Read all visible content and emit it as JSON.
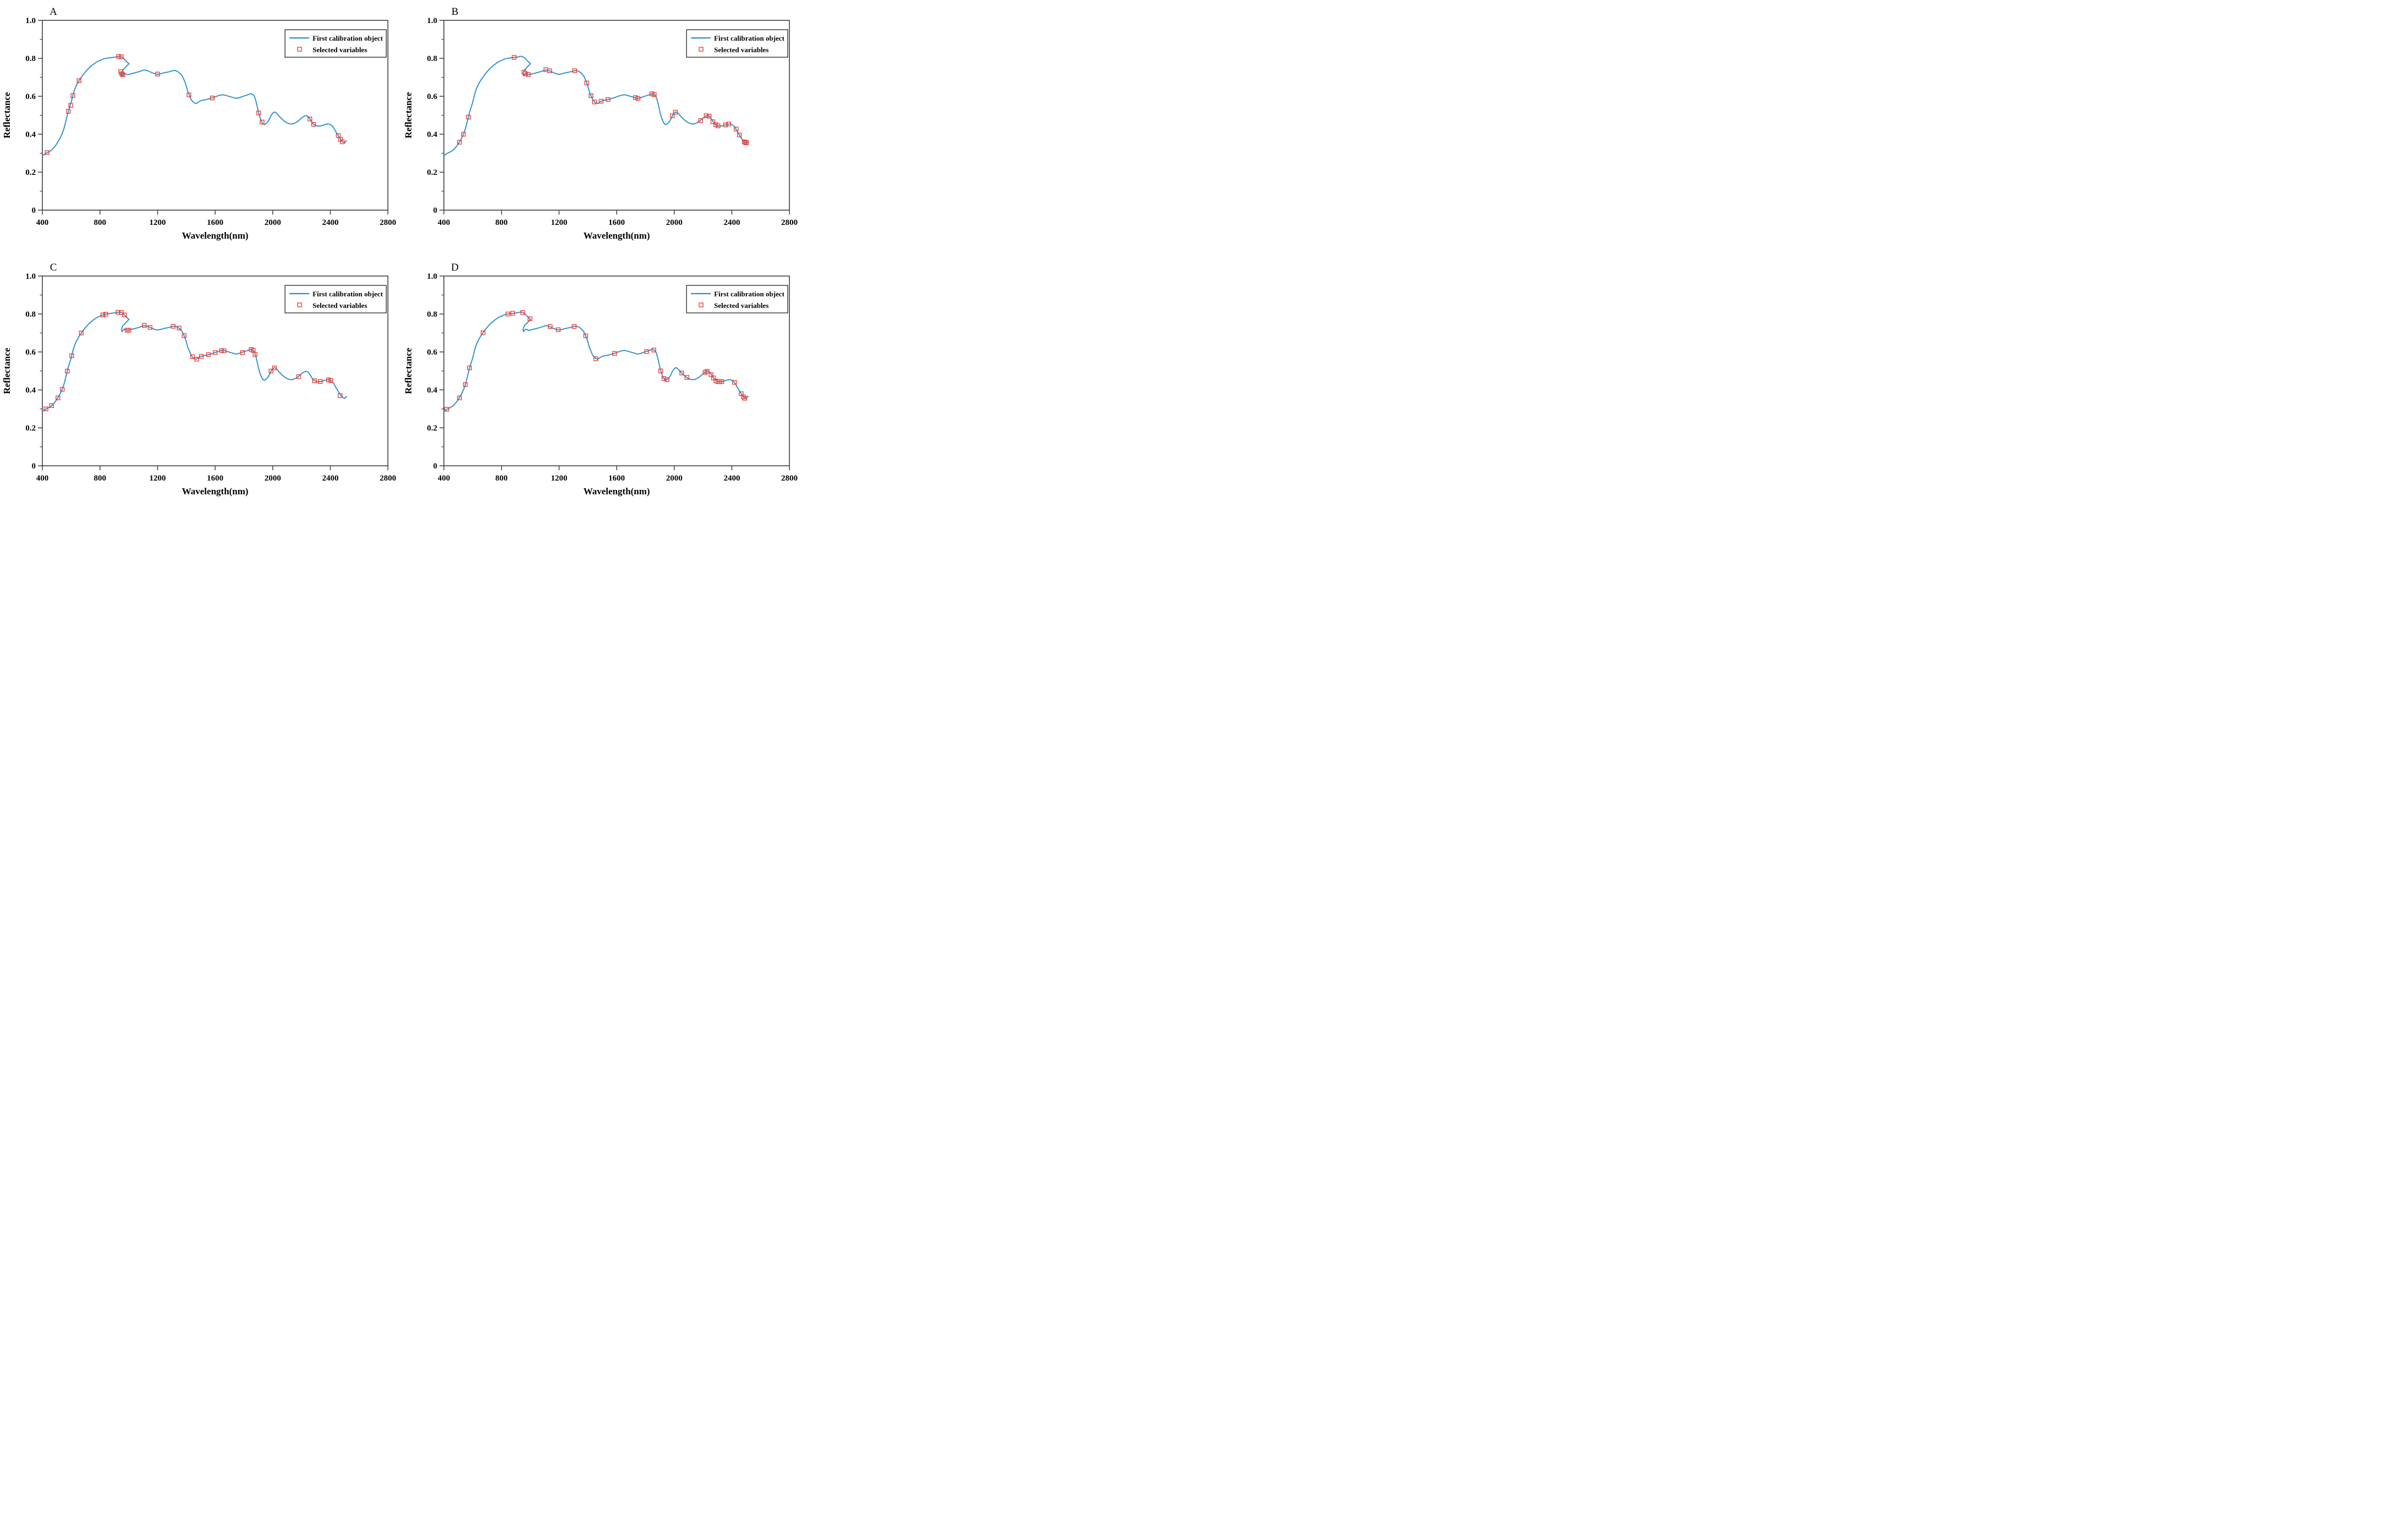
{
  "figure": {
    "description": "Four-panel figure (A-D) of reflectance spectra of the first calibration object with selected variables marked",
    "background": "#ffffff"
  },
  "styles": {
    "line_color": "#2b8fce",
    "marker_color": "#ef4136",
    "axis_color": "#3f3f3f",
    "text_color": "#000000"
  },
  "legend": {
    "position": "top-right",
    "entries": [
      {
        "label": "First calibration object",
        "symbol": "line"
      },
      {
        "label": "Selected variables",
        "symbol": "open-square"
      }
    ]
  },
  "axes": {
    "xlabel": "Wavelength(nm)",
    "ylabel": "Reflectance",
    "xlim": [
      400,
      2800
    ],
    "ylim": [
      0,
      1.0
    ],
    "xticks": [
      400,
      800,
      1200,
      1600,
      2000,
      2400,
      2800
    ],
    "yticks": [
      0,
      0.2,
      0.4,
      0.6,
      0.8,
      1.0
    ],
    "ytick_labels": [
      "0",
      "0.2",
      "0.4",
      "0.6",
      "0.8",
      "1.0"
    ],
    "y_minor_step": 0.1,
    "grid": false
  },
  "spectrum": {
    "name": "First calibration object",
    "points": [
      [
        400,
        0.287
      ],
      [
        412,
        0.293
      ],
      [
        424,
        0.299
      ],
      [
        433,
        0.303
      ],
      [
        445,
        0.307
      ],
      [
        458,
        0.313
      ],
      [
        470,
        0.321
      ],
      [
        482,
        0.331
      ],
      [
        494,
        0.343
      ],
      [
        506,
        0.357
      ],
      [
        518,
        0.372
      ],
      [
        530,
        0.39
      ],
      [
        540,
        0.408
      ],
      [
        550,
        0.43
      ],
      [
        560,
        0.459
      ],
      [
        570,
        0.49
      ],
      [
        580,
        0.52
      ],
      [
        590,
        0.545
      ],
      [
        600,
        0.567
      ],
      [
        610,
        0.6
      ],
      [
        620,
        0.627
      ],
      [
        632,
        0.65
      ],
      [
        645,
        0.67
      ],
      [
        658,
        0.686
      ],
      [
        670,
        0.7
      ],
      [
        682,
        0.712
      ],
      [
        695,
        0.725
      ],
      [
        710,
        0.738
      ],
      [
        725,
        0.75
      ],
      [
        740,
        0.76
      ],
      [
        755,
        0.769
      ],
      [
        770,
        0.777
      ],
      [
        785,
        0.784
      ],
      [
        800,
        0.789
      ],
      [
        815,
        0.794
      ],
      [
        830,
        0.798
      ],
      [
        845,
        0.8
      ],
      [
        860,
        0.802
      ],
      [
        875,
        0.803
      ],
      [
        890,
        0.805
      ],
      [
        905,
        0.806
      ],
      [
        915,
        0.807
      ],
      [
        925,
        0.809
      ],
      [
        935,
        0.811
      ],
      [
        945,
        0.809
      ],
      [
        955,
        0.805
      ],
      [
        965,
        0.799
      ],
      [
        975,
        0.791
      ],
      [
        985,
        0.783
      ],
      [
        995,
        0.776
      ],
      [
        1002,
        0.772
      ],
      [
        958,
        0.737
      ],
      [
        950,
        0.72
      ],
      [
        953,
        0.707
      ],
      [
        960,
        0.714
      ],
      [
        968,
        0.72
      ],
      [
        976,
        0.719
      ],
      [
        985,
        0.715
      ],
      [
        995,
        0.714
      ],
      [
        1008,
        0.717
      ],
      [
        1022,
        0.72
      ],
      [
        1036,
        0.722
      ],
      [
        1050,
        0.725
      ],
      [
        1064,
        0.728
      ],
      [
        1078,
        0.731
      ],
      [
        1092,
        0.735
      ],
      [
        1106,
        0.739
      ],
      [
        1120,
        0.737
      ],
      [
        1134,
        0.734
      ],
      [
        1148,
        0.729
      ],
      [
        1162,
        0.724
      ],
      [
        1176,
        0.72
      ],
      [
        1190,
        0.717
      ],
      [
        1204,
        0.716
      ],
      [
        1218,
        0.718
      ],
      [
        1232,
        0.721
      ],
      [
        1246,
        0.724
      ],
      [
        1260,
        0.726
      ],
      [
        1274,
        0.728
      ],
      [
        1288,
        0.731
      ],
      [
        1302,
        0.734
      ],
      [
        1316,
        0.736
      ],
      [
        1330,
        0.734
      ],
      [
        1344,
        0.728
      ],
      [
        1358,
        0.719
      ],
      [
        1372,
        0.706
      ],
      [
        1386,
        0.683
      ],
      [
        1398,
        0.658
      ],
      [
        1410,
        0.625
      ],
      [
        1422,
        0.603
      ],
      [
        1434,
        0.582
      ],
      [
        1446,
        0.57
      ],
      [
        1458,
        0.564
      ],
      [
        1470,
        0.562
      ],
      [
        1484,
        0.57
      ],
      [
        1498,
        0.576
      ],
      [
        1512,
        0.579
      ],
      [
        1526,
        0.581
      ],
      [
        1540,
        0.583
      ],
      [
        1554,
        0.586
      ],
      [
        1568,
        0.589
      ],
      [
        1582,
        0.592
      ],
      [
        1600,
        0.597
      ],
      [
        1618,
        0.602
      ],
      [
        1636,
        0.606
      ],
      [
        1654,
        0.608
      ],
      [
        1672,
        0.605
      ],
      [
        1690,
        0.601
      ],
      [
        1708,
        0.597
      ],
      [
        1726,
        0.593
      ],
      [
        1744,
        0.589
      ],
      [
        1762,
        0.591
      ],
      [
        1780,
        0.596
      ],
      [
        1798,
        0.601
      ],
      [
        1816,
        0.605
      ],
      [
        1834,
        0.61
      ],
      [
        1848,
        0.614
      ],
      [
        1862,
        0.609
      ],
      [
        1872,
        0.601
      ],
      [
        1882,
        0.578
      ],
      [
        1892,
        0.548
      ],
      [
        1902,
        0.512
      ],
      [
        1912,
        0.487
      ],
      [
        1922,
        0.467
      ],
      [
        1932,
        0.455
      ],
      [
        1942,
        0.451
      ],
      [
        1952,
        0.455
      ],
      [
        1964,
        0.464
      ],
      [
        1976,
        0.479
      ],
      [
        1988,
        0.499
      ],
      [
        2000,
        0.511
      ],
      [
        2010,
        0.517
      ],
      [
        2020,
        0.515
      ],
      [
        2032,
        0.506
      ],
      [
        2044,
        0.495
      ],
      [
        2056,
        0.486
      ],
      [
        2068,
        0.477
      ],
      [
        2080,
        0.469
      ],
      [
        2092,
        0.463
      ],
      [
        2104,
        0.458
      ],
      [
        2116,
        0.455
      ],
      [
        2128,
        0.454
      ],
      [
        2140,
        0.455
      ],
      [
        2152,
        0.458
      ],
      [
        2164,
        0.463
      ],
      [
        2176,
        0.469
      ],
      [
        2188,
        0.477
      ],
      [
        2200,
        0.485
      ],
      [
        2212,
        0.492
      ],
      [
        2224,
        0.497
      ],
      [
        2236,
        0.498
      ],
      [
        2248,
        0.492
      ],
      [
        2260,
        0.478
      ],
      [
        2272,
        0.463
      ],
      [
        2284,
        0.452
      ],
      [
        2296,
        0.446
      ],
      [
        2308,
        0.443
      ],
      [
        2320,
        0.443
      ],
      [
        2332,
        0.444
      ],
      [
        2344,
        0.446
      ],
      [
        2356,
        0.449
      ],
      [
        2368,
        0.452
      ],
      [
        2380,
        0.454
      ],
      [
        2392,
        0.453
      ],
      [
        2404,
        0.449
      ],
      [
        2416,
        0.441
      ],
      [
        2428,
        0.428
      ],
      [
        2440,
        0.411
      ],
      [
        2452,
        0.396
      ],
      [
        2464,
        0.381
      ],
      [
        2476,
        0.368
      ],
      [
        2488,
        0.359
      ],
      [
        2500,
        0.355
      ],
      [
        2512,
        0.366
      ]
    ]
  },
  "chart_data": [
    {
      "type": "line",
      "panel_label": "A",
      "xlabel": "Wavelength(nm)",
      "ylabel": "Reflectance",
      "xlim": [
        400,
        2800
      ],
      "ylim": [
        0,
        1.0
      ],
      "legend": [
        "First calibration object",
        "Selected variables"
      ],
      "uses_shared_spectrum": true,
      "selected_variables": [
        [
          433,
          0.303
        ],
        [
          580,
          0.52
        ],
        [
          597,
          0.552
        ],
        [
          612,
          0.604
        ],
        [
          655,
          0.682
        ],
        [
          930,
          0.81
        ],
        [
          947,
          0.808
        ],
        [
          944,
          0.73
        ],
        [
          951,
          0.719
        ],
        [
          958,
          0.714
        ],
        [
          1200,
          0.717
        ],
        [
          1418,
          0.607
        ],
        [
          1580,
          0.591
        ],
        [
          1902,
          0.512
        ],
        [
          1926,
          0.464
        ],
        [
          2258,
          0.48
        ],
        [
          2284,
          0.452
        ],
        [
          2455,
          0.393
        ],
        [
          2470,
          0.373
        ],
        [
          2483,
          0.36
        ]
      ]
    },
    {
      "type": "line",
      "panel_label": "B",
      "xlabel": "Wavelength(nm)",
      "ylabel": "Reflectance",
      "xlim": [
        400,
        2800
      ],
      "ylim": [
        0,
        1.0
      ],
      "legend": [
        "First calibration object",
        "Selected variables"
      ],
      "uses_shared_spectrum": true,
      "selected_variables": [
        [
          508,
          0.358
        ],
        [
          536,
          0.4
        ],
        [
          570,
          0.49
        ],
        [
          888,
          0.805
        ],
        [
          956,
          0.727
        ],
        [
          966,
          0.719
        ],
        [
          986,
          0.715
        ],
        [
          1108,
          0.74
        ],
        [
          1134,
          0.734
        ],
        [
          1308,
          0.735
        ],
        [
          1392,
          0.67
        ],
        [
          1422,
          0.603
        ],
        [
          1446,
          0.57
        ],
        [
          1492,
          0.574
        ],
        [
          1540,
          0.583
        ],
        [
          1730,
          0.593
        ],
        [
          1748,
          0.589
        ],
        [
          1845,
          0.613
        ],
        [
          1861,
          0.609
        ],
        [
          1986,
          0.497
        ],
        [
          2008,
          0.516
        ],
        [
          2183,
          0.472
        ],
        [
          2222,
          0.497
        ],
        [
          2242,
          0.495
        ],
        [
          2268,
          0.466
        ],
        [
          2288,
          0.45
        ],
        [
          2304,
          0.444
        ],
        [
          2356,
          0.449
        ],
        [
          2378,
          0.454
        ],
        [
          2430,
          0.427
        ],
        [
          2452,
          0.396
        ],
        [
          2486,
          0.36
        ],
        [
          2494,
          0.357
        ],
        [
          2501,
          0.355
        ]
      ]
    },
    {
      "type": "line",
      "panel_label": "C",
      "xlabel": "Wavelength(nm)",
      "ylabel": "Reflectance",
      "xlim": [
        400,
        2800
      ],
      "ylim": [
        0,
        1.0
      ],
      "legend": [
        "First calibration object",
        "Selected variables"
      ],
      "uses_shared_spectrum": true,
      "selected_variables": [
        [
          425,
          0.3
        ],
        [
          464,
          0.317
        ],
        [
          508,
          0.358
        ],
        [
          538,
          0.403
        ],
        [
          573,
          0.499
        ],
        [
          604,
          0.58
        ],
        [
          670,
          0.7
        ],
        [
          820,
          0.795
        ],
        [
          840,
          0.799
        ],
        [
          925,
          0.809
        ],
        [
          948,
          0.808
        ],
        [
          970,
          0.795
        ],
        [
          988,
          0.715
        ],
        [
          1000,
          0.714
        ],
        [
          1108,
          0.74
        ],
        [
          1148,
          0.729
        ],
        [
          1308,
          0.735
        ],
        [
          1350,
          0.726
        ],
        [
          1385,
          0.686
        ],
        [
          1443,
          0.575
        ],
        [
          1472,
          0.562
        ],
        [
          1504,
          0.577
        ],
        [
          1553,
          0.586
        ],
        [
          1600,
          0.597
        ],
        [
          1645,
          0.607
        ],
        [
          1662,
          0.606
        ],
        [
          1790,
          0.597
        ],
        [
          1850,
          0.613
        ],
        [
          1864,
          0.608
        ],
        [
          1877,
          0.587
        ],
        [
          1988,
          0.499
        ],
        [
          2012,
          0.516
        ],
        [
          2180,
          0.47
        ],
        [
          2290,
          0.448
        ],
        [
          2330,
          0.444
        ],
        [
          2387,
          0.453
        ],
        [
          2404,
          0.449
        ],
        [
          2468,
          0.37
        ]
      ]
    },
    {
      "type": "line",
      "panel_label": "D",
      "xlabel": "Wavelength(nm)",
      "ylabel": "Reflectance",
      "xlim": [
        400,
        2800
      ],
      "ylim": [
        0,
        1.0
      ],
      "legend": [
        "First calibration object",
        "Selected variables"
      ],
      "uses_shared_spectrum": true,
      "selected_variables": [
        [
          420,
          0.298
        ],
        [
          508,
          0.358
        ],
        [
          549,
          0.428
        ],
        [
          578,
          0.516
        ],
        [
          672,
          0.701
        ],
        [
          845,
          0.8
        ],
        [
          878,
          0.804
        ],
        [
          948,
          0.808
        ],
        [
          998,
          0.775
        ],
        [
          1138,
          0.734
        ],
        [
          1194,
          0.717
        ],
        [
          1305,
          0.734
        ],
        [
          1385,
          0.685
        ],
        [
          1455,
          0.564
        ],
        [
          1585,
          0.592
        ],
        [
          1808,
          0.602
        ],
        [
          1858,
          0.61
        ],
        [
          1906,
          0.5
        ],
        [
          1928,
          0.46
        ],
        [
          1950,
          0.454
        ],
        [
          2052,
          0.489
        ],
        [
          2088,
          0.466
        ],
        [
          2214,
          0.493
        ],
        [
          2228,
          0.498
        ],
        [
          2256,
          0.48
        ],
        [
          2272,
          0.463
        ],
        [
          2290,
          0.447
        ],
        [
          2304,
          0.444
        ],
        [
          2317,
          0.443
        ],
        [
          2330,
          0.444
        ],
        [
          2418,
          0.44
        ],
        [
          2465,
          0.38
        ],
        [
          2480,
          0.363
        ],
        [
          2490,
          0.356
        ]
      ]
    }
  ]
}
